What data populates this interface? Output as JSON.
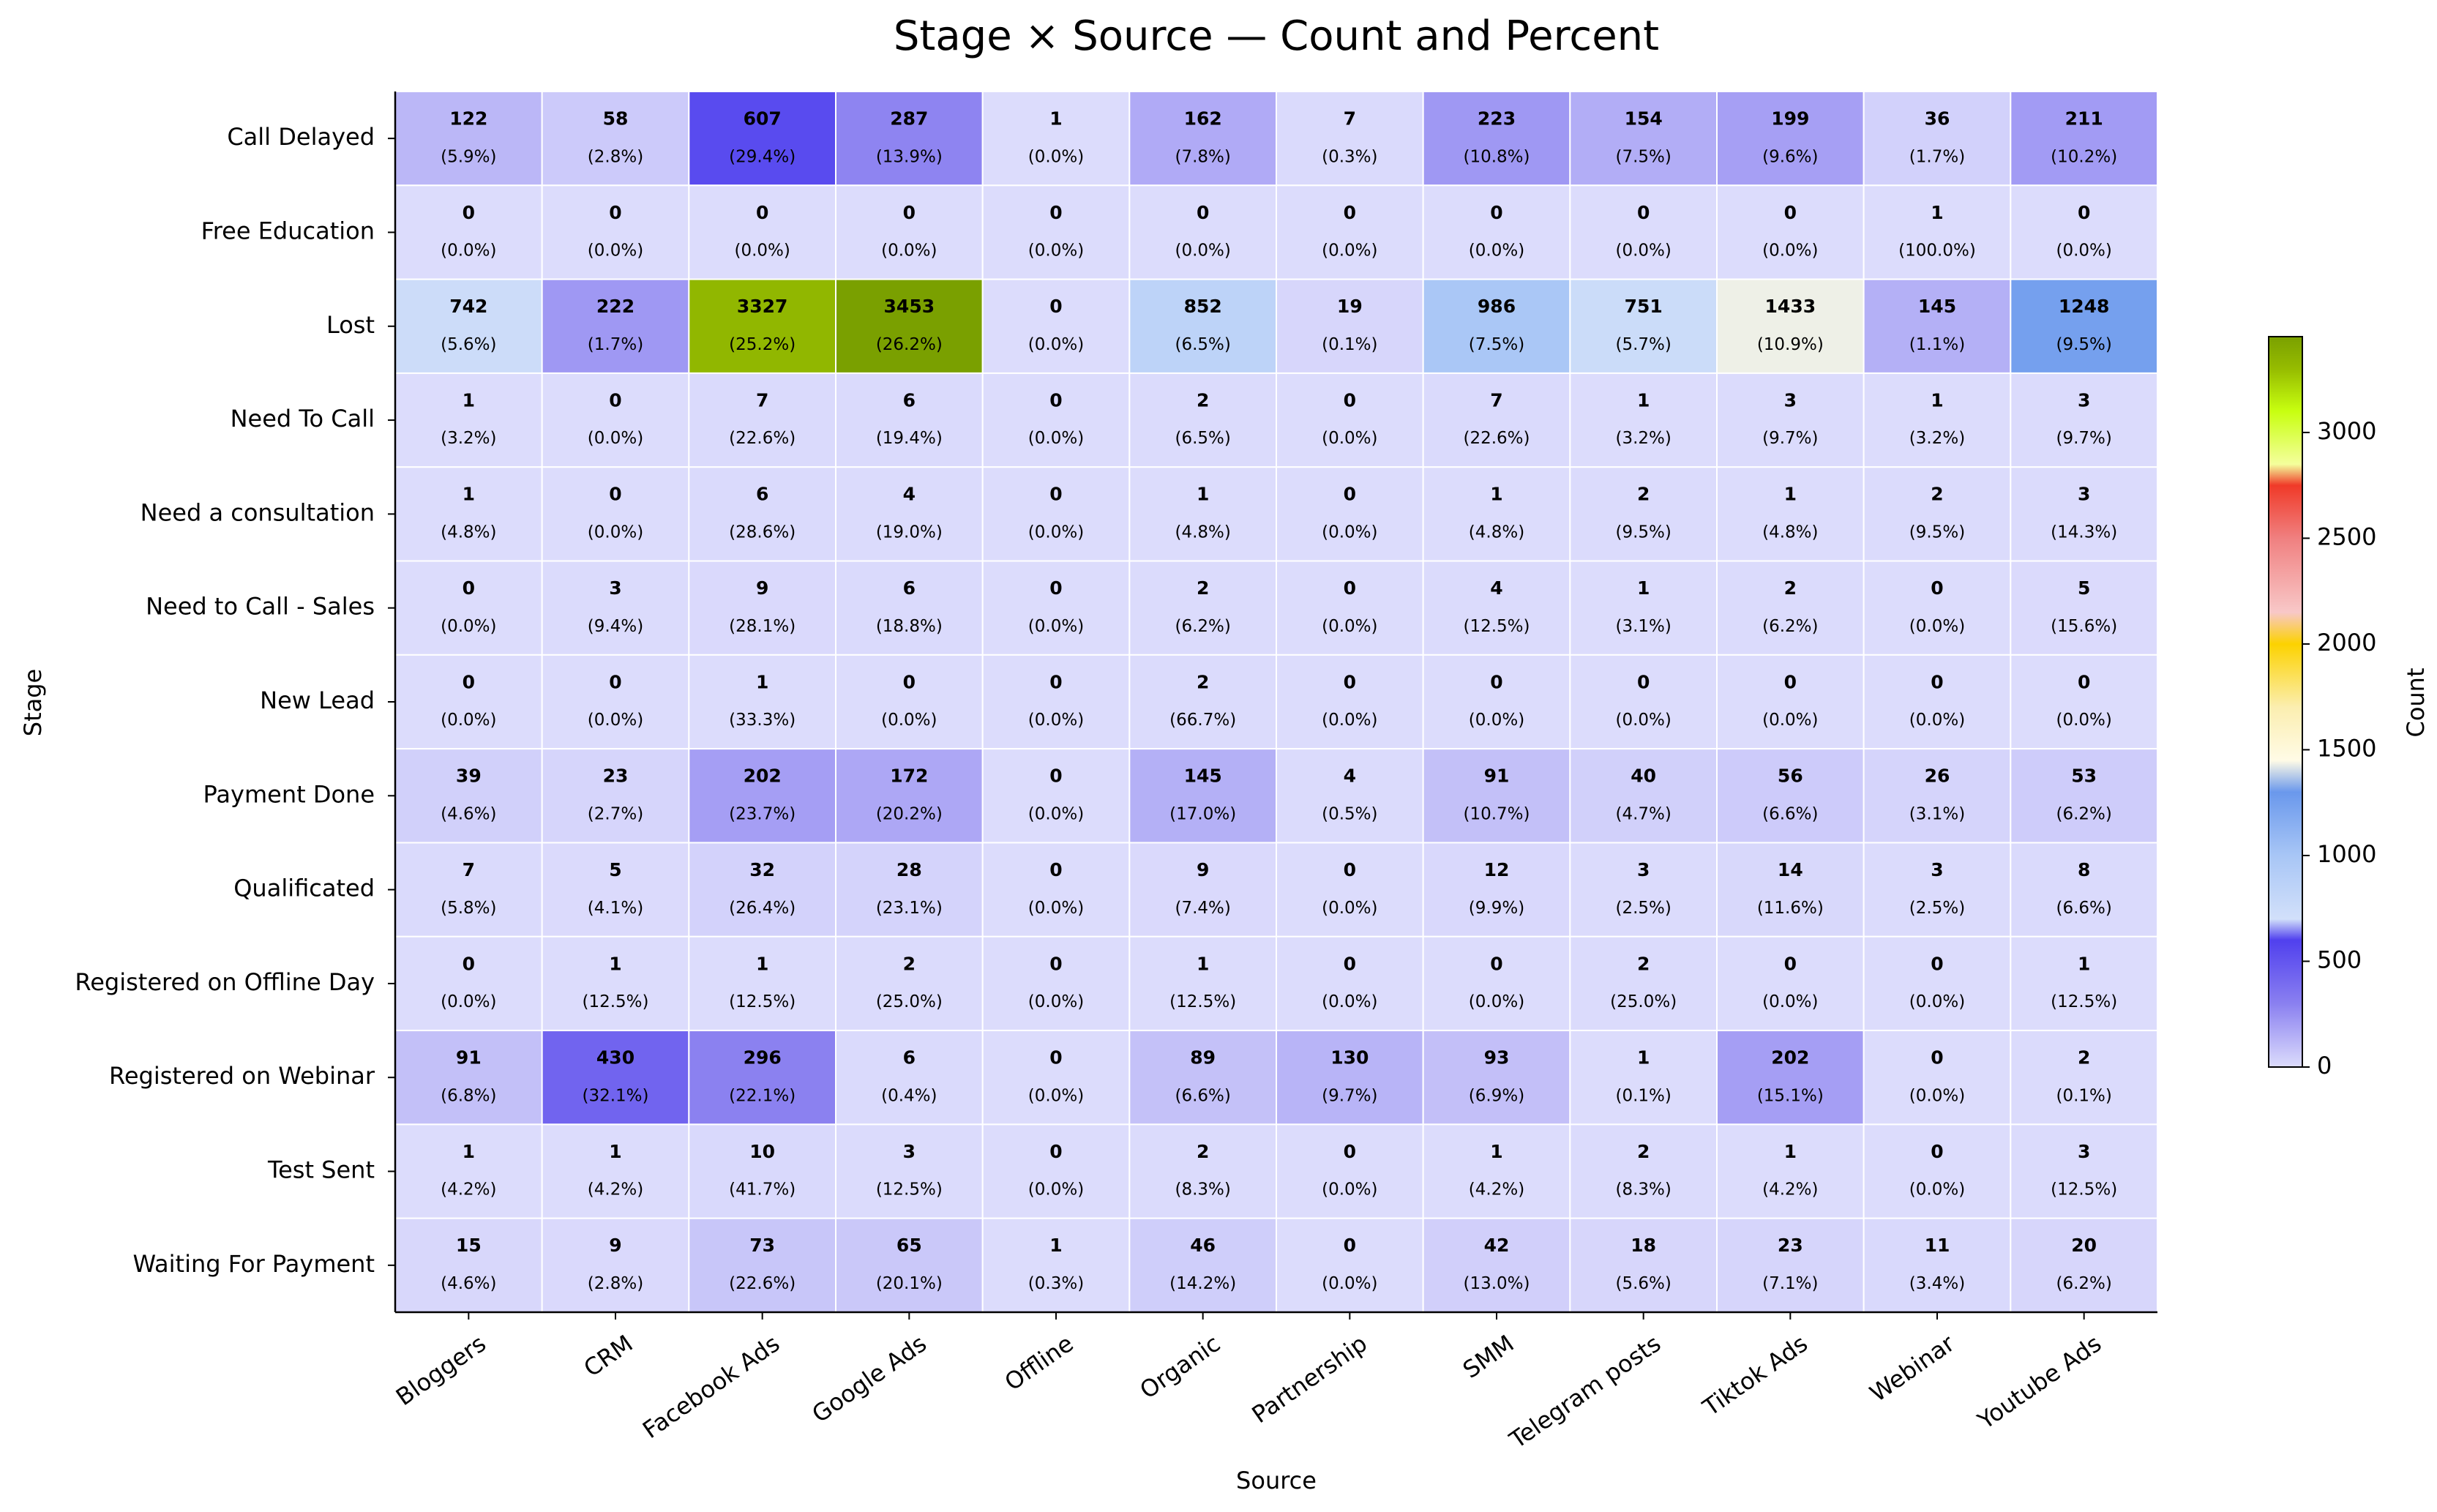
{
  "chart_data": {
    "type": "heatmap",
    "title": "Stage × Source — Count and Percent",
    "xlabel": "Source",
    "ylabel": "Stage",
    "colorbar_label": "Count",
    "colorbar_ticks": [
      "0",
      "500",
      "1000",
      "1500",
      "2000",
      "2500",
      "3000"
    ],
    "colorbar_range": [
      0,
      3453
    ],
    "grid": false,
    "legend": "right",
    "sources": [
      "Bloggers",
      "CRM",
      "Facebook Ads",
      "Google Ads",
      "Offline",
      "Organic",
      "Partnership",
      "SMM",
      "Telegram posts",
      "Tiktok Ads",
      "Webinar",
      "Youtube Ads"
    ],
    "stages": [
      "Call Delayed",
      "Free Education",
      "Lost",
      "Need To Call",
      "Need a consultation",
      "Need to Call - Sales",
      "New Lead",
      "Payment Done",
      "Qualificated",
      "Registered on Offline Day",
      "Registered on Webinar",
      "Test Sent",
      "Waiting For Payment"
    ],
    "counts": [
      [
        122,
        58,
        607,
        287,
        1,
        162,
        7,
        223,
        154,
        199,
        36,
        211
      ],
      [
        0,
        0,
        0,
        0,
        0,
        0,
        0,
        0,
        0,
        0,
        1,
        0
      ],
      [
        742,
        222,
        3327,
        3453,
        0,
        852,
        19,
        986,
        751,
        1433,
        145,
        1248
      ],
      [
        1,
        0,
        7,
        6,
        0,
        2,
        0,
        7,
        1,
        3,
        1,
        3
      ],
      [
        1,
        0,
        6,
        4,
        0,
        1,
        0,
        1,
        2,
        1,
        2,
        3
      ],
      [
        0,
        3,
        9,
        6,
        0,
        2,
        0,
        4,
        1,
        2,
        0,
        5
      ],
      [
        0,
        0,
        1,
        0,
        0,
        2,
        0,
        0,
        0,
        0,
        0,
        0
      ],
      [
        39,
        23,
        202,
        172,
        0,
        145,
        4,
        91,
        40,
        56,
        26,
        53
      ],
      [
        7,
        5,
        32,
        28,
        0,
        9,
        0,
        12,
        3,
        14,
        3,
        8
      ],
      [
        0,
        1,
        1,
        2,
        0,
        1,
        0,
        0,
        2,
        0,
        0,
        1
      ],
      [
        91,
        430,
        296,
        6,
        0,
        89,
        130,
        93,
        1,
        202,
        0,
        2
      ],
      [
        1,
        1,
        10,
        3,
        0,
        2,
        0,
        1,
        2,
        1,
        0,
        3
      ],
      [
        15,
        9,
        73,
        65,
        1,
        46,
        0,
        42,
        18,
        23,
        11,
        20
      ]
    ],
    "percents": [
      [
        "(5.9%)",
        "(2.8%)",
        "(29.4%)",
        "(13.9%)",
        "(0.0%)",
        "(7.8%)",
        "(0.3%)",
        "(10.8%)",
        "(7.5%)",
        "(9.6%)",
        "(1.7%)",
        "(10.2%)"
      ],
      [
        "(0.0%)",
        "(0.0%)",
        "(0.0%)",
        "(0.0%)",
        "(0.0%)",
        "(0.0%)",
        "(0.0%)",
        "(0.0%)",
        "(0.0%)",
        "(0.0%)",
        "(100.0%)",
        "(0.0%)"
      ],
      [
        "(5.6%)",
        "(1.7%)",
        "(25.2%)",
        "(26.2%)",
        "(0.0%)",
        "(6.5%)",
        "(0.1%)",
        "(7.5%)",
        "(5.7%)",
        "(10.9%)",
        "(1.1%)",
        "(9.5%)"
      ],
      [
        "(3.2%)",
        "(0.0%)",
        "(22.6%)",
        "(19.4%)",
        "(0.0%)",
        "(6.5%)",
        "(0.0%)",
        "(22.6%)",
        "(3.2%)",
        "(9.7%)",
        "(3.2%)",
        "(9.7%)"
      ],
      [
        "(4.8%)",
        "(0.0%)",
        "(28.6%)",
        "(19.0%)",
        "(0.0%)",
        "(4.8%)",
        "(0.0%)",
        "(4.8%)",
        "(9.5%)",
        "(4.8%)",
        "(9.5%)",
        "(14.3%)"
      ],
      [
        "(0.0%)",
        "(9.4%)",
        "(28.1%)",
        "(18.8%)",
        "(0.0%)",
        "(6.2%)",
        "(0.0%)",
        "(12.5%)",
        "(3.1%)",
        "(6.2%)",
        "(0.0%)",
        "(15.6%)"
      ],
      [
        "(0.0%)",
        "(0.0%)",
        "(33.3%)",
        "(0.0%)",
        "(0.0%)",
        "(66.7%)",
        "(0.0%)",
        "(0.0%)",
        "(0.0%)",
        "(0.0%)",
        "(0.0%)",
        "(0.0%)"
      ],
      [
        "(4.6%)",
        "(2.7%)",
        "(23.7%)",
        "(20.2%)",
        "(0.0%)",
        "(17.0%)",
        "(0.5%)",
        "(10.7%)",
        "(4.7%)",
        "(6.6%)",
        "(3.1%)",
        "(6.2%)"
      ],
      [
        "(5.8%)",
        "(4.1%)",
        "(26.4%)",
        "(23.1%)",
        "(0.0%)",
        "(7.4%)",
        "(0.0%)",
        "(9.9%)",
        "(2.5%)",
        "(11.6%)",
        "(2.5%)",
        "(6.6%)"
      ],
      [
        "(0.0%)",
        "(12.5%)",
        "(12.5%)",
        "(25.0%)",
        "(0.0%)",
        "(12.5%)",
        "(0.0%)",
        "(0.0%)",
        "(25.0%)",
        "(0.0%)",
        "(0.0%)",
        "(12.5%)"
      ],
      [
        "(6.8%)",
        "(32.1%)",
        "(22.1%)",
        "(0.4%)",
        "(0.0%)",
        "(6.6%)",
        "(9.7%)",
        "(6.9%)",
        "(0.1%)",
        "(15.1%)",
        "(0.0%)",
        "(0.1%)"
      ],
      [
        "(4.2%)",
        "(4.2%)",
        "(41.7%)",
        "(12.5%)",
        "(0.0%)",
        "(8.3%)",
        "(0.0%)",
        "(4.2%)",
        "(8.3%)",
        "(4.2%)",
        "(0.0%)",
        "(12.5%)"
      ],
      [
        "(4.6%)",
        "(2.8%)",
        "(22.6%)",
        "(20.1%)",
        "(0.3%)",
        "(14.2%)",
        "(0.0%)",
        "(13.0%)",
        "(5.6%)",
        "(7.1%)",
        "(3.4%)",
        "(6.2%)"
      ]
    ],
    "colormap_stops": [
      [
        0,
        "#dcdcfc"
      ],
      [
        300,
        "#8a80f0"
      ],
      [
        600,
        "#5040ee"
      ],
      [
        700,
        "#d2e0fa"
      ],
      [
        1000,
        "#a8c6f6"
      ],
      [
        1300,
        "#6a98ec"
      ],
      [
        1450,
        "#fffbe6"
      ],
      [
        1700,
        "#fbeeb0"
      ],
      [
        2000,
        "#fcd200"
      ],
      [
        2150,
        "#f8c8c8"
      ],
      [
        2500,
        "#f08080"
      ],
      [
        2750,
        "#f03a28"
      ],
      [
        2850,
        "#f4ff9c"
      ],
      [
        3100,
        "#c8ff10"
      ],
      [
        3300,
        "#96bc00"
      ],
      [
        3453,
        "#7aa000"
      ]
    ]
  }
}
